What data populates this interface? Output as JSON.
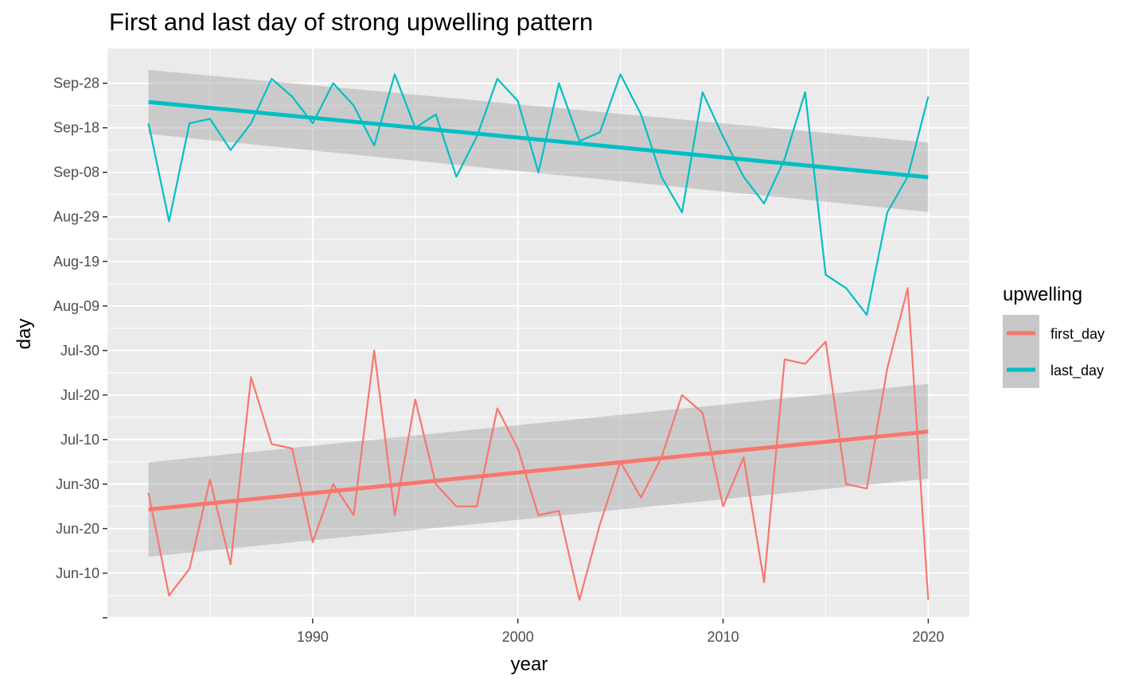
{
  "chart_data": {
    "type": "line",
    "title": "First and last day of strong upwelling pattern",
    "xlabel": "year",
    "ylabel": "day",
    "x_ticks": [
      1990,
      2000,
      2010,
      2020
    ],
    "y_ticks": [
      {
        "label": "",
        "doy": 150
      },
      {
        "label": "Jun-10",
        "doy": 160
      },
      {
        "label": "Jun-20",
        "doy": 170
      },
      {
        "label": "Jun-30",
        "doy": 180
      },
      {
        "label": "Jul-10",
        "doy": 190
      },
      {
        "label": "Jul-20",
        "doy": 200
      },
      {
        "label": "Jul-30",
        "doy": 210
      },
      {
        "label": "Aug-09",
        "doy": 220
      },
      {
        "label": "Aug-19",
        "doy": 230
      },
      {
        "label": "Aug-29",
        "doy": 240
      },
      {
        "label": "Sep-08",
        "doy": 250
      },
      {
        "label": "Sep-18",
        "doy": 260
      },
      {
        "label": "Sep-28",
        "doy": 270
      }
    ],
    "xlim": [
      1980,
      2022
    ],
    "ylim": [
      149.8,
      277.8
    ],
    "grid": true,
    "legend": {
      "title": "upwelling",
      "position": "right"
    },
    "x": [
      1982,
      1983,
      1984,
      1985,
      1986,
      1987,
      1988,
      1989,
      1990,
      1991,
      1992,
      1993,
      1994,
      1995,
      1996,
      1997,
      1998,
      1999,
      2000,
      2001,
      2002,
      2003,
      2004,
      2005,
      2006,
      2007,
      2008,
      2009,
      2010,
      2011,
      2012,
      2013,
      2014,
      2015,
      2016,
      2017,
      2018,
      2019,
      2020
    ],
    "series": [
      {
        "name": "first_day",
        "color": "#F8766D",
        "values": [
          178,
          155,
          161,
          181,
          162,
          204,
          189,
          188,
          167,
          180,
          173,
          210,
          173,
          199,
          180,
          175,
          175,
          197,
          188,
          173,
          174,
          154,
          171,
          185,
          177,
          186,
          200,
          196,
          175,
          186,
          158,
          208,
          207,
          212,
          180,
          179,
          206,
          224,
          154
        ],
        "trend": {
          "start": 174.3,
          "end": 191.8,
          "ci_low_start": 163.7,
          "ci_high_start": 184.9,
          "ci_low_end": 181.2,
          "ci_high_end": 202.5
        }
      },
      {
        "name": "last_day",
        "color": "#00BFC4",
        "values": [
          261,
          239,
          261,
          262,
          255,
          261,
          271,
          267,
          261,
          270,
          265,
          256,
          272,
          260,
          263,
          249,
          258,
          271,
          266,
          250,
          270,
          257,
          259,
          272,
          263,
          249,
          241,
          268,
          258,
          249,
          243,
          253,
          268,
          227,
          224,
          218,
          241,
          249,
          267
        ],
        "trend": {
          "start": 265.8,
          "end": 248.9,
          "ci_low_start": 258.6,
          "ci_high_start": 273.0,
          "ci_low_end": 241.1,
          "ci_high_end": 256.7
        }
      }
    ]
  }
}
